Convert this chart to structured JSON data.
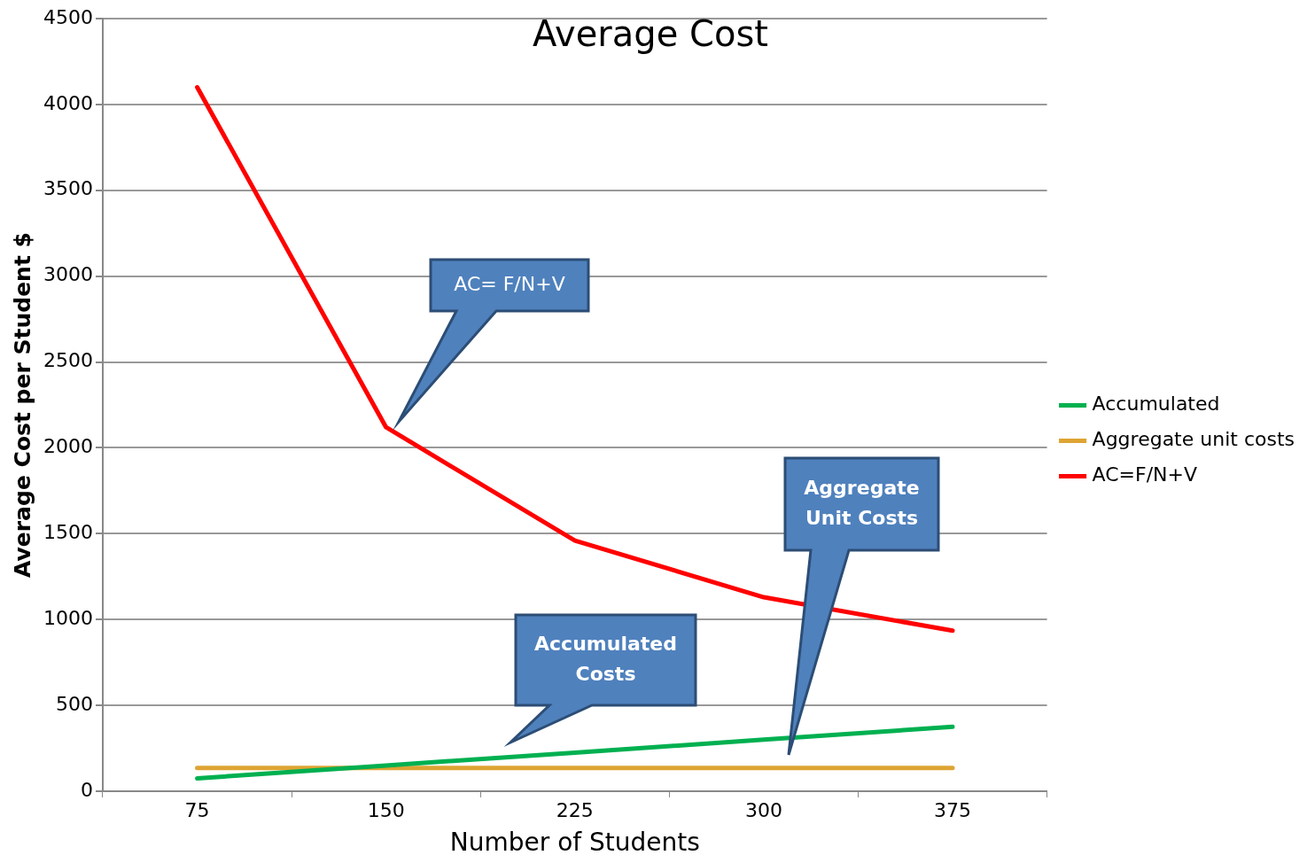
{
  "chart_data": {
    "type": "line",
    "title": "Average Cost",
    "xlabel": "Number of Students",
    "ylabel": "Average Cost per Student $",
    "categories": [
      "75",
      "150",
      "225",
      "300",
      "375"
    ],
    "series": [
      {
        "name": "Accumulated",
        "color": "#00b050",
        "values": [
          75,
          150,
          225,
          300,
          375
        ]
      },
      {
        "name": "Aggregate unit costs",
        "color": "#dea433",
        "values": [
          135,
          135,
          135,
          135,
          135
        ]
      },
      {
        "name": "AC=F/N+V",
        "color": "#ff0000",
        "values": [
          4100,
          2120,
          1460,
          1130,
          935
        ]
      }
    ],
    "ylim": [
      0,
      4500
    ],
    "yticks": [
      0,
      500,
      1000,
      1500,
      2000,
      2500,
      3000,
      3500,
      4000,
      4500
    ],
    "grid": "y",
    "legend": "right",
    "annotations": [
      "AC= F/N+V",
      "Accumulated Costs",
      "Aggregate Unit Costs"
    ]
  }
}
